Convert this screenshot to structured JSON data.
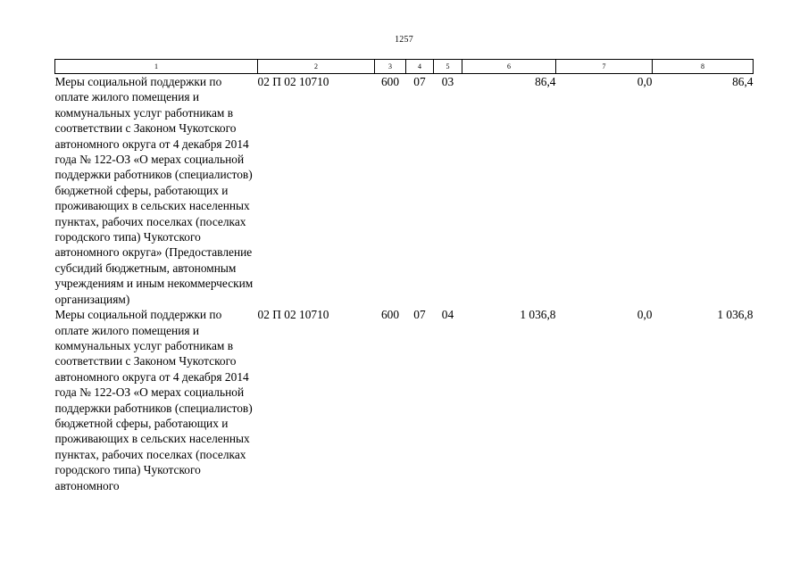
{
  "page_number": "1257",
  "table": {
    "columns": [
      "1",
      "2",
      "3",
      "4",
      "5",
      "6",
      "7",
      "8"
    ],
    "rows": [
      {
        "name": "Меры социальной поддержки по оплате жилого помещения и коммунальных услуг работникам в соответствии с Законом Чукотского автономного округа от 4 декабря 2014 года № 122-ОЗ «О мерах социальной поддержки работников (специалистов) бюджетной сферы, работающих и проживающих в сельских населенных пунктах, рабочих поселках (поселках городского типа) Чукотского автономного округа» (Предоставление субсидий бюджетным, автономным учреждениям и иным некоммерческим организациям)",
        "code": "02 П 02 10710",
        "c3": "600",
        "c4": "07",
        "c5": "03",
        "c6": "86,4",
        "c7": "0,0",
        "c8": "86,4"
      },
      {
        "name": "Меры социальной поддержки по оплате жилого помещения и коммунальных услуг работникам в соответствии с Законом Чукотского автономного округа от 4 декабря 2014 года № 122-ОЗ «О мерах социальной поддержки работников (специалистов) бюджетной сферы, работающих и проживающих в сельских населенных пунктах, рабочих поселках (поселках городского типа) Чукотского автономного",
        "code": "02 П 02 10710",
        "c3": "600",
        "c4": "07",
        "c5": "04",
        "c6": "1 036,8",
        "c7": "0,0",
        "c8": "1 036,8"
      }
    ]
  }
}
